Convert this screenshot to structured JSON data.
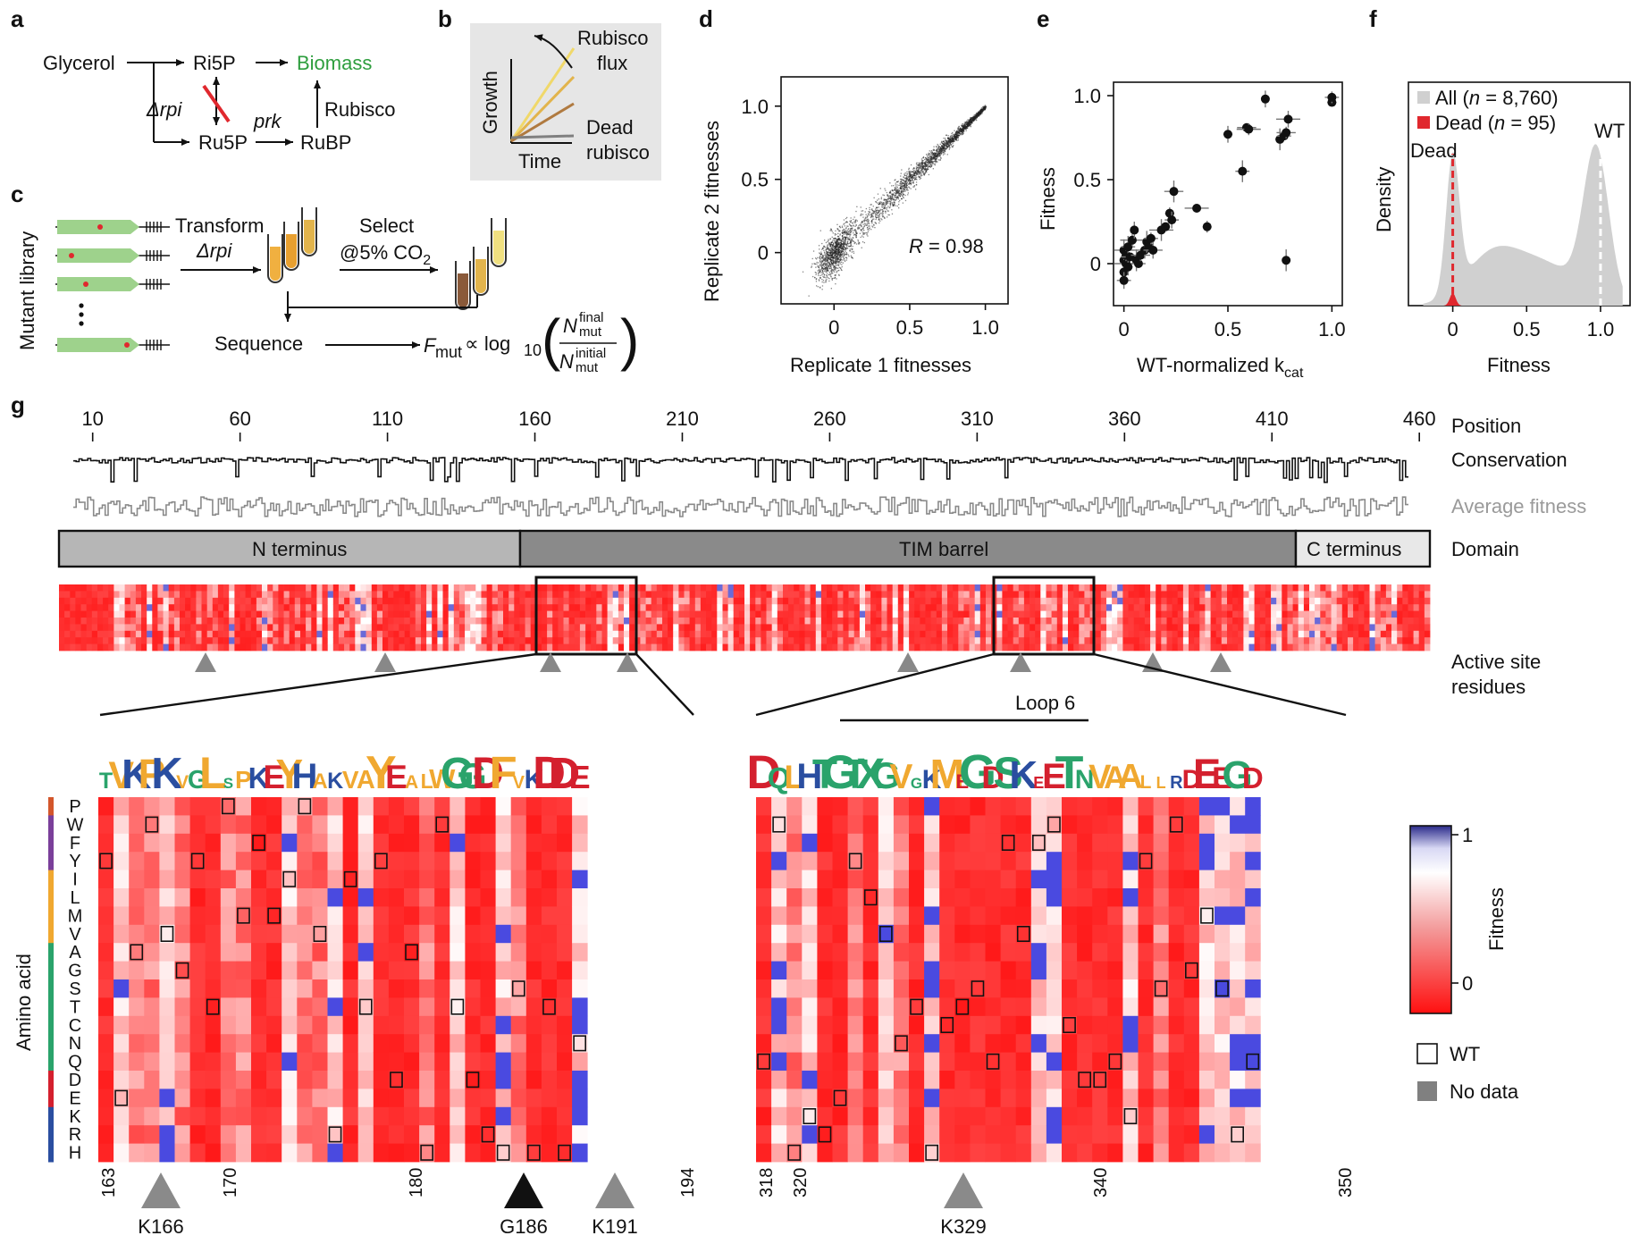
{
  "panel_labels": [
    "a",
    "b",
    "c",
    "d",
    "e",
    "f",
    "g"
  ],
  "panel_a": {
    "nodes": {
      "glycerol": "Glycerol",
      "ri5p": "Ri5P",
      "ru5p": "Ru5P",
      "biomass": "Biomass",
      "rubp": "RuBP"
    },
    "edge_labels": {
      "delta_rpi": "Δrpi",
      "prk": "prk",
      "rubisco": "Rubisco"
    },
    "colors": {
      "biomass": "#2e9e3e",
      "knockout": "#e0282e"
    }
  },
  "panel_b": {
    "ylabel": "Growth",
    "xlabel": "Time",
    "annotations": {
      "flux_line1": "Rubisco",
      "flux_line2": "flux",
      "dead_line1": "Dead",
      "dead_line2": "rubisco"
    },
    "line_colors": [
      "#f0d86a",
      "#e2b44c",
      "#b07a40",
      "#808080"
    ]
  },
  "panel_c": {
    "ylabel": "Mutant library",
    "transform_label": "Transform",
    "transform_sub": "Δrpi",
    "select_label": "Select",
    "select_sub": "@5% CO",
    "select_sub_index": "2",
    "sequence_label": "Sequence",
    "formula": {
      "lhs": "F",
      "lhs_sub": "mut",
      "prop": "∝ log",
      "log_base": "10",
      "num": "N",
      "num_sup": "final",
      "num_sub": "mut",
      "den": "N",
      "den_sup": "initial",
      "den_sub": "mut"
    }
  },
  "chart_data": [
    {
      "id": "d",
      "type": "scatter",
      "xlabel": "Replicate 1 fitnesses",
      "ylabel": "Replicate 2 fitnesses",
      "x_ticks": [
        "0",
        "0.5",
        "1.0"
      ],
      "y_ticks": [
        "0",
        "0.5",
        "1.0"
      ],
      "xlim": [
        -0.35,
        1.15
      ],
      "ylim": [
        -0.35,
        1.2
      ],
      "annotation": {
        "r_symbol": "R",
        "r_value": " = 0.98"
      },
      "correlation": 0.98,
      "n_points": 8760
    },
    {
      "id": "e",
      "type": "scatter",
      "xlabel": "WT-normalized k",
      "xlabel_sub": "cat",
      "ylabel": "Fitness",
      "x_ticks": [
        "0",
        "0.5",
        "1.0"
      ],
      "y_ticks": [
        "0",
        "0.5",
        "1.0"
      ],
      "xlim": [
        -0.05,
        1.05
      ],
      "ylim": [
        -0.25,
        1.08
      ],
      "points": [
        {
          "x": 0.0,
          "y": 0.02
        },
        {
          "x": 0.0,
          "y": -0.05
        },
        {
          "x": 0.0,
          "y": -0.1
        },
        {
          "x": 0.0,
          "y": 0.08
        },
        {
          "x": 0.01,
          "y": 0.0
        },
        {
          "x": 0.01,
          "y": 0.05
        },
        {
          "x": 0.02,
          "y": -0.02
        },
        {
          "x": 0.02,
          "y": 0.1
        },
        {
          "x": 0.03,
          "y": 0.04
        },
        {
          "x": 0.04,
          "y": 0.14
        },
        {
          "x": 0.05,
          "y": 0.2
        },
        {
          "x": 0.06,
          "y": 0.02
        },
        {
          "x": 0.07,
          "y": 0.0
        },
        {
          "x": 0.08,
          "y": 0.05
        },
        {
          "x": 0.1,
          "y": 0.08
        },
        {
          "x": 0.11,
          "y": 0.13
        },
        {
          "x": 0.12,
          "y": 0.1
        },
        {
          "x": 0.13,
          "y": 0.15
        },
        {
          "x": 0.14,
          "y": 0.08
        },
        {
          "x": 0.18,
          "y": 0.2
        },
        {
          "x": 0.2,
          "y": 0.22
        },
        {
          "x": 0.22,
          "y": 0.3
        },
        {
          "x": 0.23,
          "y": 0.26
        },
        {
          "x": 0.24,
          "y": 0.43
        },
        {
          "x": 0.35,
          "y": 0.33
        },
        {
          "x": 0.4,
          "y": 0.22
        },
        {
          "x": 0.5,
          "y": 0.77
        },
        {
          "x": 0.57,
          "y": 0.55
        },
        {
          "x": 0.59,
          "y": 0.81
        },
        {
          "x": 0.6,
          "y": 0.8
        },
        {
          "x": 0.68,
          "y": 0.98
        },
        {
          "x": 0.75,
          "y": 0.74
        },
        {
          "x": 0.77,
          "y": 0.76
        },
        {
          "x": 0.78,
          "y": 0.78
        },
        {
          "x": 0.79,
          "y": 0.86
        },
        {
          "x": 0.78,
          "y": 0.02
        },
        {
          "x": 1.0,
          "y": 0.96
        },
        {
          "x": 1.0,
          "y": 0.99
        }
      ]
    },
    {
      "id": "f",
      "type": "area",
      "xlabel": "Fitness",
      "ylabel": "Density",
      "x_ticks": [
        "0",
        "0.5",
        "1.0"
      ],
      "xlim": [
        -0.3,
        1.2
      ],
      "legend": {
        "all_prefix": "All (",
        "all_n": "n",
        "all_suffix": " = 8,760)",
        "dead_prefix": "Dead (",
        "dead_n": "n",
        "dead_suffix": " = 95)"
      },
      "annotations": {
        "dead": "Dead",
        "wt": "WT"
      },
      "series": [
        {
          "name": "All",
          "color": "#d0d0d0"
        },
        {
          "name": "Dead",
          "color": "#e0282e"
        }
      ]
    }
  ],
  "panel_g": {
    "position_ticks": [
      "10",
      "60",
      "110",
      "160",
      "210",
      "260",
      "310",
      "360",
      "410",
      "460"
    ],
    "track_labels": {
      "position": "Position",
      "conservation": "Conservation",
      "avg_fitness": "Average fitness",
      "domain": "Domain",
      "active_site_line1": "Active site",
      "active_site_line2": "residues"
    },
    "domains": [
      {
        "name": "N terminus"
      },
      {
        "name": "TIM barrel"
      },
      {
        "name": "C terminus"
      }
    ],
    "amino_acid_axis_label": "Amino acid",
    "amino_acids": [
      "P",
      "W",
      "F",
      "Y",
      "I",
      "L",
      "M",
      "V",
      "A",
      "G",
      "S",
      "T",
      "C",
      "N",
      "Q",
      "D",
      "E",
      "K",
      "R",
      "H"
    ],
    "group_colors": [
      "#d3562b",
      "#7a3f9a",
      "#7a3f9a",
      "#7a3f9a",
      "#f0a830",
      "#f0a830",
      "#f0a830",
      "#f0a830",
      "#2aa36b",
      "#2aa36b",
      "#2aa36b",
      "#2aa36b",
      "#2aa36b",
      "#2aa36b",
      "#2aa36b",
      "#d4202e",
      "#d4202e",
      "#2a4ea0",
      "#2a4ea0",
      "#2a4ea0"
    ],
    "left_zoom": {
      "wt_sequence": "TVKPKVGLSPKEYHAKVAYEALWGGDFVKDDEN",
      "ticks": [
        "163",
        "170",
        "180",
        "194"
      ],
      "markers": [
        {
          "label": "K166"
        },
        {
          "label": "G186"
        },
        {
          "label": "K191"
        }
      ]
    },
    "right_zoom": {
      "wt_sequence": "DQLHTGTXGVGKMEGDSKEETNVAALLRDEEG",
      "ticks": [
        "318",
        "320",
        "340",
        "350"
      ],
      "loop_label": "Loop 6",
      "markers": [
        {
          "label": "K329"
        }
      ]
    },
    "colorbar": {
      "label": "Fitness",
      "max": "1",
      "min": "0"
    },
    "legend": {
      "wt": "WT",
      "no_data": "No data"
    }
  }
}
